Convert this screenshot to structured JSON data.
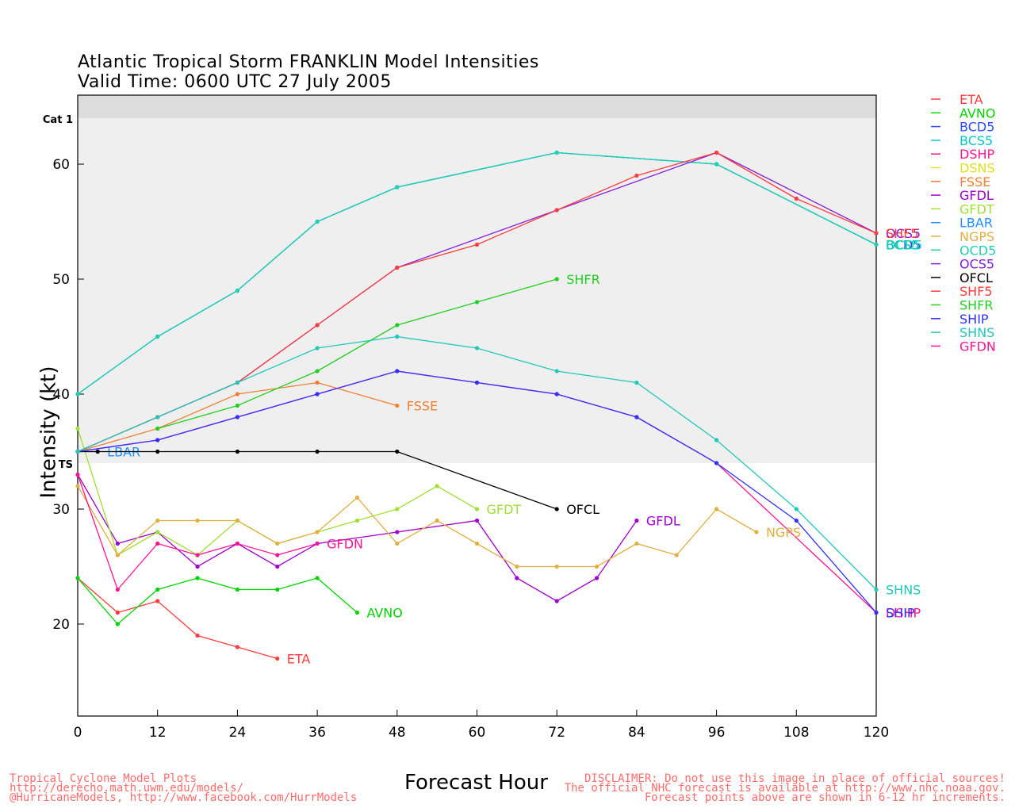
{
  "chart_data": {
    "type": "line",
    "title": "Atlantic Tropical Storm FRANKLIN Model Intensities",
    "subtitle": "Valid Time: 0600 UTC 27 July 2005",
    "xlabel": "Forecast Hour",
    "ylabel": "Intensity (kt)",
    "xlim": [
      0,
      120
    ],
    "ylim": [
      12,
      66
    ],
    "xticks": [
      0,
      12,
      24,
      36,
      48,
      60,
      72,
      84,
      96,
      108,
      120
    ],
    "yticks": [
      20,
      30,
      40,
      50,
      60
    ],
    "bands": [
      {
        "label": "TS",
        "from": 34,
        "to": 64,
        "color": "#efefef"
      },
      {
        "label": "Cat 1",
        "from": 64,
        "to": 66,
        "color": "#dcdcdc"
      }
    ],
    "legend_position": "right",
    "series": [
      {
        "name": "ETA",
        "color": "#ff3b3b",
        "end_label": "ETA",
        "x": [
          0,
          6,
          12,
          18,
          24,
          30
        ],
        "y": [
          24,
          21,
          22,
          19,
          18,
          17
        ]
      },
      {
        "name": "AVNO",
        "color": "#00d400",
        "end_label": "AVNO",
        "x": [
          0,
          6,
          12,
          18,
          24,
          30,
          36,
          42
        ],
        "y": [
          24,
          20,
          23,
          24,
          23,
          23,
          24,
          21
        ]
      },
      {
        "name": "BCD5",
        "color": "#2b4cff",
        "end_label": "BCD5",
        "x": [
          0,
          12,
          24,
          36,
          48,
          72,
          96,
          120
        ],
        "y": [
          40,
          45,
          49,
          55,
          58,
          61,
          60,
          53
        ]
      },
      {
        "name": "BCS5",
        "color": "#00c8c8",
        "end_label": "BCS5",
        "x": [
          0,
          12,
          24,
          36,
          48,
          72,
          96,
          120
        ],
        "y": [
          40,
          45,
          49,
          55,
          58,
          61,
          60,
          53
        ]
      },
      {
        "name": "DSHP",
        "color": "#ff1493",
        "end_label": "DSHP",
        "x": [
          0,
          12,
          24,
          36,
          48,
          60,
          72,
          84,
          96,
          120
        ],
        "y": [
          35,
          36,
          38,
          40,
          42,
          41,
          40,
          38,
          34,
          21
        ]
      },
      {
        "name": "DSNS",
        "color": "#e0e020",
        "x": [],
        "y": []
      },
      {
        "name": "FSSE",
        "color": "#f08030",
        "end_label": "FSSE",
        "x": [
          0,
          12,
          24,
          36,
          48
        ],
        "y": [
          35,
          37,
          40,
          41,
          39
        ]
      },
      {
        "name": "GFDL",
        "color": "#a000d0",
        "end_label": "GFDL",
        "x": [
          0,
          6,
          12,
          18,
          24,
          30,
          36,
          48,
          60,
          66,
          72,
          78,
          84
        ],
        "y": [
          33,
          27,
          28,
          25,
          27,
          25,
          27,
          28,
          29,
          24,
          22,
          24,
          29
        ]
      },
      {
        "name": "GFDT",
        "color": "#a0e030",
        "end_label": "GFDT",
        "x": [
          0,
          6,
          12,
          18,
          24,
          30,
          36,
          42,
          48,
          54,
          60
        ],
        "y": [
          37,
          26,
          28,
          26,
          29,
          27,
          28,
          29,
          30,
          32,
          30
        ]
      },
      {
        "name": "LBAR",
        "color": "#1e90ff",
        "end_label": "LBAR",
        "x": [
          0,
          3
        ],
        "y": [
          35,
          35
        ]
      },
      {
        "name": "NGPS",
        "color": "#e0b040",
        "end_label": "NGPS",
        "x": [
          0,
          6,
          12,
          18,
          24,
          30,
          36,
          42,
          48,
          54,
          60,
          66,
          72,
          78,
          84,
          90,
          96,
          102
        ],
        "y": [
          32,
          26,
          29,
          29,
          29,
          27,
          28,
          31,
          27,
          29,
          27,
          25,
          25,
          25,
          27,
          26,
          30,
          28
        ]
      },
      {
        "name": "OCD5",
        "color": "#20d0b0",
        "end_label": "OCD5",
        "x": [
          0,
          12,
          24,
          36,
          48,
          72,
          96,
          120
        ],
        "y": [
          40,
          45,
          49,
          55,
          58,
          61,
          60,
          53
        ]
      },
      {
        "name": "OCS5",
        "color": "#8020e0",
        "end_label": "OCS5",
        "x": [
          0,
          12,
          24,
          36,
          48,
          72,
          96,
          120
        ],
        "y": [
          35,
          38,
          41,
          46,
          51,
          56,
          61,
          54
        ]
      },
      {
        "name": "OFCL",
        "color": "#000000",
        "end_label": "OFCL",
        "x": [
          0,
          3,
          12,
          24,
          36,
          48,
          72
        ],
        "y": [
          35,
          35,
          35,
          35,
          35,
          35,
          30
        ]
      },
      {
        "name": "SHF5",
        "color": "#ff3b3b",
        "end_label": "SHF5",
        "x": [
          0,
          12,
          24,
          36,
          48,
          60,
          72,
          84,
          96,
          108,
          120
        ],
        "y": [
          35,
          38,
          41,
          46,
          51,
          53,
          56,
          59,
          61,
          57,
          54
        ]
      },
      {
        "name": "SHFR",
        "color": "#20d020",
        "end_label": "SHFR",
        "x": [
          12,
          24,
          36,
          48,
          60,
          72
        ],
        "y": [
          37,
          39,
          42,
          46,
          48,
          50
        ]
      },
      {
        "name": "SHIP",
        "color": "#3030ff",
        "end_label": "SHIP",
        "x": [
          0,
          12,
          24,
          36,
          48,
          60,
          72,
          84,
          96,
          108,
          120
        ],
        "y": [
          35,
          36,
          38,
          40,
          42,
          41,
          40,
          38,
          34,
          29,
          21
        ]
      },
      {
        "name": "SHNS",
        "color": "#20c8b8",
        "end_label": "SHNS",
        "x": [
          0,
          12,
          24,
          36,
          48,
          60,
          72,
          84,
          96,
          108,
          120
        ],
        "y": [
          35,
          38,
          41,
          44,
          45,
          44,
          42,
          41,
          36,
          30,
          23
        ]
      },
      {
        "name": "GFDN",
        "color": "#ff1493",
        "end_label": "GFDN",
        "x": [
          0,
          6,
          12,
          18,
          24,
          30,
          36
        ],
        "y": [
          33,
          23,
          27,
          26,
          27,
          26,
          27
        ]
      }
    ]
  },
  "footer_left": [
    "Tropical Cyclone Model Plots",
    "http://derecho.math.uwm.edu/models/",
    "@HurricaneModels, http://www.facebook.com/HurrModels"
  ],
  "footer_right": [
    "DISCLAIMER: Do not use this image in place of official sources!",
    "The official NHC forecast is available at http://www.nhc.noaa.gov.",
    "Forecast points above are shown in 6-12 hr increments."
  ]
}
